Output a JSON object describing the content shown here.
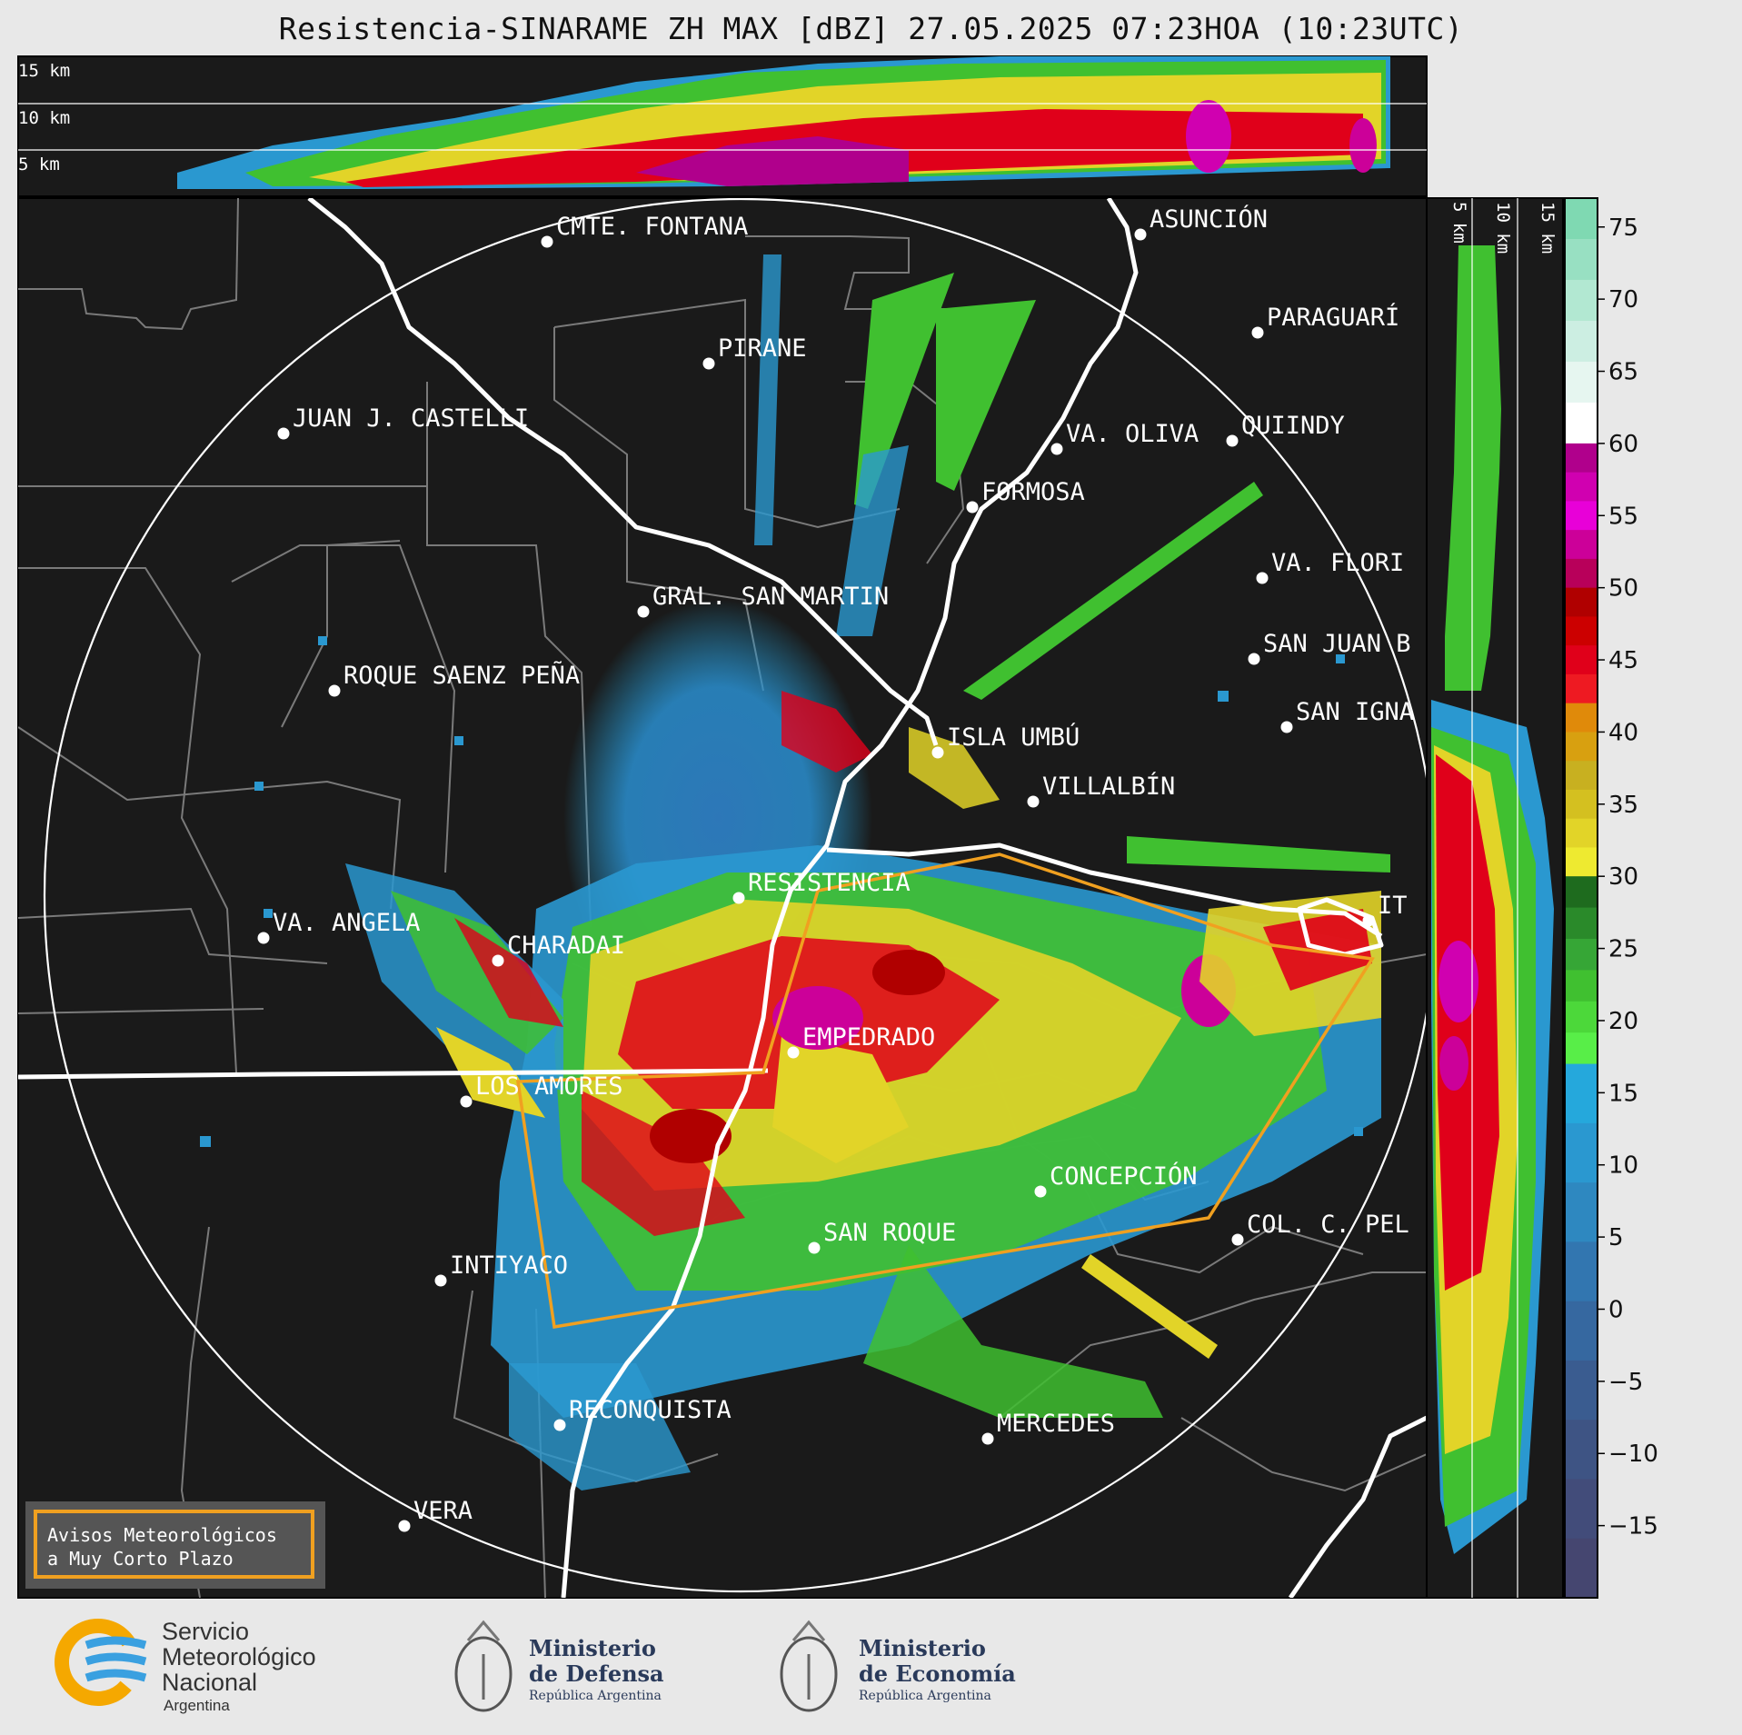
{
  "title": "Resistencia-SINARAME ZH MAX [dBZ] 27.05.2025 07:23HOA (10:23UTC)",
  "top_profile": {
    "height_labels": [
      "15 km",
      "10 km",
      "5 km"
    ]
  },
  "side_profile": {
    "height_labels": [
      "5 km",
      "10 km",
      "15 km"
    ]
  },
  "colorbar": {
    "ticks": [
      "75",
      "70",
      "65",
      "60",
      "55",
      "50",
      "45",
      "40",
      "35",
      "30",
      "25",
      "20",
      "15",
      "10",
      "5",
      "0",
      "−5",
      "−10",
      "−15"
    ],
    "bands": [
      {
        "from": 60,
        "to": 77,
        "colors": [
          "#7fd9b2",
          "#98e0c2",
          "#b2e8d2",
          "#cceee2",
          "#e6f6f0",
          "#ffffff"
        ]
      },
      {
        "from": 50,
        "to": 60,
        "colors": [
          "#b0008c",
          "#d000b0",
          "#e800d8",
          "#cc0099",
          "#b8005a"
        ]
      },
      {
        "from": 42,
        "to": 50,
        "colors": [
          "#b00000",
          "#cc0000",
          "#e0001a",
          "#ee1a22"
        ]
      },
      {
        "from": 30,
        "to": 42,
        "colors": [
          "#e08a0a",
          "#d8a010",
          "#c8b020",
          "#d4c020",
          "#e2d428",
          "#eeea30"
        ]
      },
      {
        "from": 17,
        "to": 30,
        "colors": [
          "#1e6b1e",
          "#2a8a2a",
          "#36a636",
          "#40c030",
          "#4cd83a",
          "#58ee48"
        ]
      },
      {
        "from": -20,
        "to": 17,
        "colors": [
          "#25a8dc",
          "#2a98d0",
          "#2e88c0",
          "#3276b0",
          "#3668a0",
          "#3a5c90",
          "#3e5484",
          "#424c7a",
          "#454670"
        ]
      }
    ]
  },
  "localities": [
    {
      "name": "CMTE. FONTANA"
    },
    {
      "name": "ASUNCIÓN"
    },
    {
      "name": "PIRANE"
    },
    {
      "name": "PARAGUARÍ"
    },
    {
      "name": "JUAN J. CASTELLI"
    },
    {
      "name": "VA. OLIVA"
    },
    {
      "name": "QUIINDY"
    },
    {
      "name": "FORMOSA"
    },
    {
      "name": "VA. FLORI"
    },
    {
      "name": "GRAL. SAN MARTIN"
    },
    {
      "name": "SAN JUAN B"
    },
    {
      "name": "ROQUE SAENZ PEÑA"
    },
    {
      "name": "SAN IGNA"
    },
    {
      "name": "ISLA UMBÚ"
    },
    {
      "name": "VILLALBÍN"
    },
    {
      "name": "RESISTENCIA"
    },
    {
      "name": "VA. ANGELA"
    },
    {
      "name": "CHARADAI"
    },
    {
      "name": "IT"
    },
    {
      "name": "EMPEDRADO"
    },
    {
      "name": "LOS AMORES"
    },
    {
      "name": "CONCEPCIÓN"
    },
    {
      "name": "SAN ROQUE"
    },
    {
      "name": "COL. C. PEL"
    },
    {
      "name": "INTIYACO"
    },
    {
      "name": "RECONQUISTA"
    },
    {
      "name": "MERCEDES"
    },
    {
      "name": "VERA"
    }
  ],
  "notice": {
    "line1": "Avisos Meteorológicos",
    "line2": "a Muy Corto Plazo"
  },
  "logos": {
    "smn": {
      "line1": "Servicio",
      "line2": "Meteorológico",
      "line3": "Nacional",
      "line4": "Argentina"
    },
    "defensa": {
      "line1": "Ministerio",
      "line2": "de Defensa",
      "line3": "República Argentina"
    },
    "economia": {
      "line1": "Ministerio",
      "line2": "de Economía",
      "line3": "República Argentina"
    }
  }
}
